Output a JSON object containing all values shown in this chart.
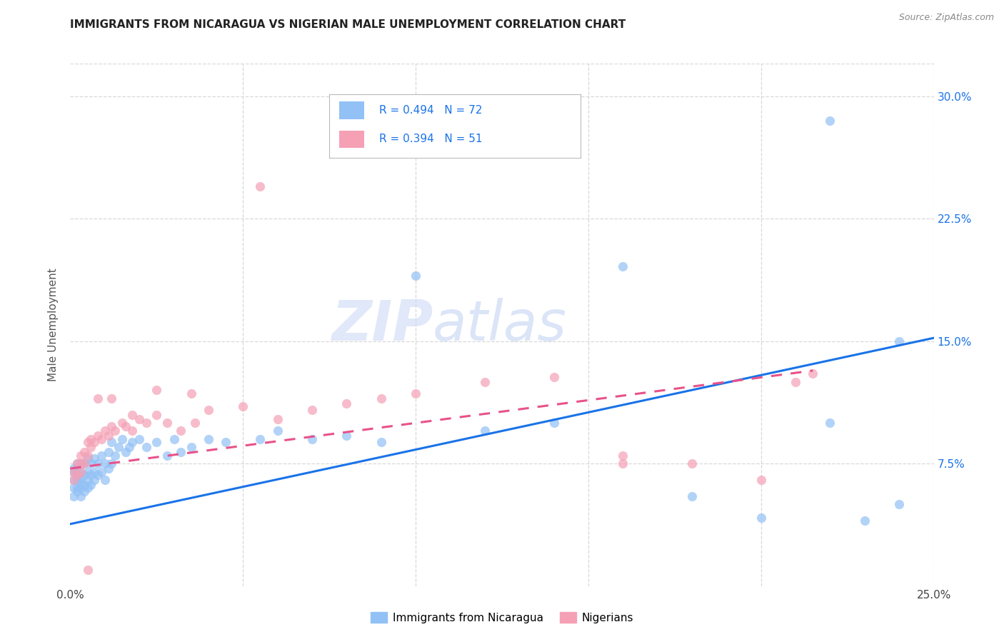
{
  "title": "IMMIGRANTS FROM NICARAGUA VS NIGERIAN MALE UNEMPLOYMENT CORRELATION CHART",
  "source": "Source: ZipAtlas.com",
  "ylabel": "Male Unemployment",
  "watermark_zip": "ZIP",
  "watermark_atlas": "atlas",
  "xlim": [
    0.0,
    0.25
  ],
  "ylim": [
    0.0,
    0.32
  ],
  "yticks": [
    0.075,
    0.15,
    0.225,
    0.3
  ],
  "ytick_labels": [
    "7.5%",
    "15.0%",
    "22.5%",
    "30.0%"
  ],
  "legend1_label": "R = 0.494   N = 72",
  "legend2_label": "R = 0.394   N = 51",
  "legend_bottom_label1": "Immigrants from Nicaragua",
  "legend_bottom_label2": "Nigerians",
  "series1_color": "#92c1f5",
  "series2_color": "#f5a0b5",
  "trendline1_color": "#1a73e8",
  "trendline2_color": "#e8528a",
  "trendline1_x": [
    0.0,
    0.25
  ],
  "trendline1_y": [
    0.038,
    0.152
  ],
  "trendline2_x": [
    0.0,
    0.215
  ],
  "trendline2_y": [
    0.072,
    0.132
  ],
  "series1_x": [
    0.001,
    0.001,
    0.001,
    0.001,
    0.001,
    0.002,
    0.002,
    0.002,
    0.002,
    0.002,
    0.002,
    0.003,
    0.003,
    0.003,
    0.003,
    0.003,
    0.003,
    0.004,
    0.004,
    0.004,
    0.004,
    0.005,
    0.005,
    0.005,
    0.005,
    0.006,
    0.006,
    0.006,
    0.007,
    0.007,
    0.007,
    0.008,
    0.008,
    0.009,
    0.009,
    0.01,
    0.01,
    0.011,
    0.011,
    0.012,
    0.012,
    0.013,
    0.014,
    0.015,
    0.016,
    0.017,
    0.018,
    0.02,
    0.022,
    0.025,
    0.028,
    0.03,
    0.032,
    0.035,
    0.04,
    0.045,
    0.055,
    0.06,
    0.07,
    0.08,
    0.09,
    0.1,
    0.12,
    0.14,
    0.16,
    0.18,
    0.2,
    0.22,
    0.23,
    0.24,
    0.22,
    0.24
  ],
  "series1_y": [
    0.055,
    0.06,
    0.065,
    0.07,
    0.072,
    0.058,
    0.06,
    0.065,
    0.068,
    0.072,
    0.075,
    0.055,
    0.06,
    0.063,
    0.066,
    0.07,
    0.075,
    0.058,
    0.062,
    0.068,
    0.075,
    0.06,
    0.065,
    0.07,
    0.078,
    0.062,
    0.068,
    0.075,
    0.065,
    0.07,
    0.078,
    0.068,
    0.075,
    0.07,
    0.08,
    0.065,
    0.075,
    0.072,
    0.082,
    0.075,
    0.088,
    0.08,
    0.085,
    0.09,
    0.082,
    0.085,
    0.088,
    0.09,
    0.085,
    0.088,
    0.08,
    0.09,
    0.082,
    0.085,
    0.09,
    0.088,
    0.09,
    0.095,
    0.09,
    0.092,
    0.088,
    0.19,
    0.095,
    0.1,
    0.196,
    0.055,
    0.042,
    0.285,
    0.04,
    0.05,
    0.1,
    0.15
  ],
  "series2_x": [
    0.001,
    0.001,
    0.002,
    0.002,
    0.003,
    0.003,
    0.003,
    0.004,
    0.004,
    0.005,
    0.005,
    0.006,
    0.006,
    0.007,
    0.008,
    0.009,
    0.01,
    0.011,
    0.012,
    0.013,
    0.015,
    0.016,
    0.018,
    0.02,
    0.022,
    0.025,
    0.028,
    0.032,
    0.036,
    0.04,
    0.05,
    0.06,
    0.07,
    0.08,
    0.09,
    0.1,
    0.12,
    0.14,
    0.16,
    0.18,
    0.2,
    0.21,
    0.215,
    0.005,
    0.008,
    0.012,
    0.018,
    0.025,
    0.035,
    0.055,
    0.16
  ],
  "series2_y": [
    0.065,
    0.07,
    0.068,
    0.075,
    0.07,
    0.075,
    0.08,
    0.075,
    0.082,
    0.08,
    0.088,
    0.085,
    0.09,
    0.088,
    0.092,
    0.09,
    0.095,
    0.092,
    0.098,
    0.095,
    0.1,
    0.098,
    0.095,
    0.102,
    0.1,
    0.105,
    0.1,
    0.095,
    0.1,
    0.108,
    0.11,
    0.102,
    0.108,
    0.112,
    0.115,
    0.118,
    0.125,
    0.128,
    0.075,
    0.075,
    0.065,
    0.125,
    0.13,
    0.01,
    0.115,
    0.115,
    0.105,
    0.12,
    0.118,
    0.245,
    0.08
  ],
  "background_color": "#ffffff",
  "grid_color": "#d8d8d8"
}
